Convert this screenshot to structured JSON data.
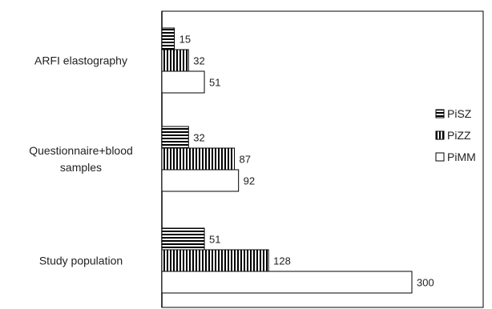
{
  "chart_data": {
    "type": "bar",
    "orientation": "horizontal",
    "categories": [
      "ARFI elastography",
      "Questionnaire+blood samples",
      "Study population"
    ],
    "category_lines": [
      [
        "ARFI elastography"
      ],
      [
        "Questionnaire+blood",
        "samples"
      ],
      [
        "Study population"
      ]
    ],
    "series": [
      {
        "name": "PiSZ",
        "values": [
          15,
          32,
          51
        ],
        "pattern": "horizontal-stripes"
      },
      {
        "name": "PiZZ",
        "values": [
          32,
          87,
          128
        ],
        "pattern": "vertical-stripes"
      },
      {
        "name": "PiMM",
        "values": [
          51,
          92,
          300
        ],
        "pattern": "empty"
      }
    ],
    "xlim": [
      0,
      400
    ],
    "grid": false,
    "legend_position": "right",
    "title": "",
    "xlabel": "",
    "ylabel": ""
  }
}
